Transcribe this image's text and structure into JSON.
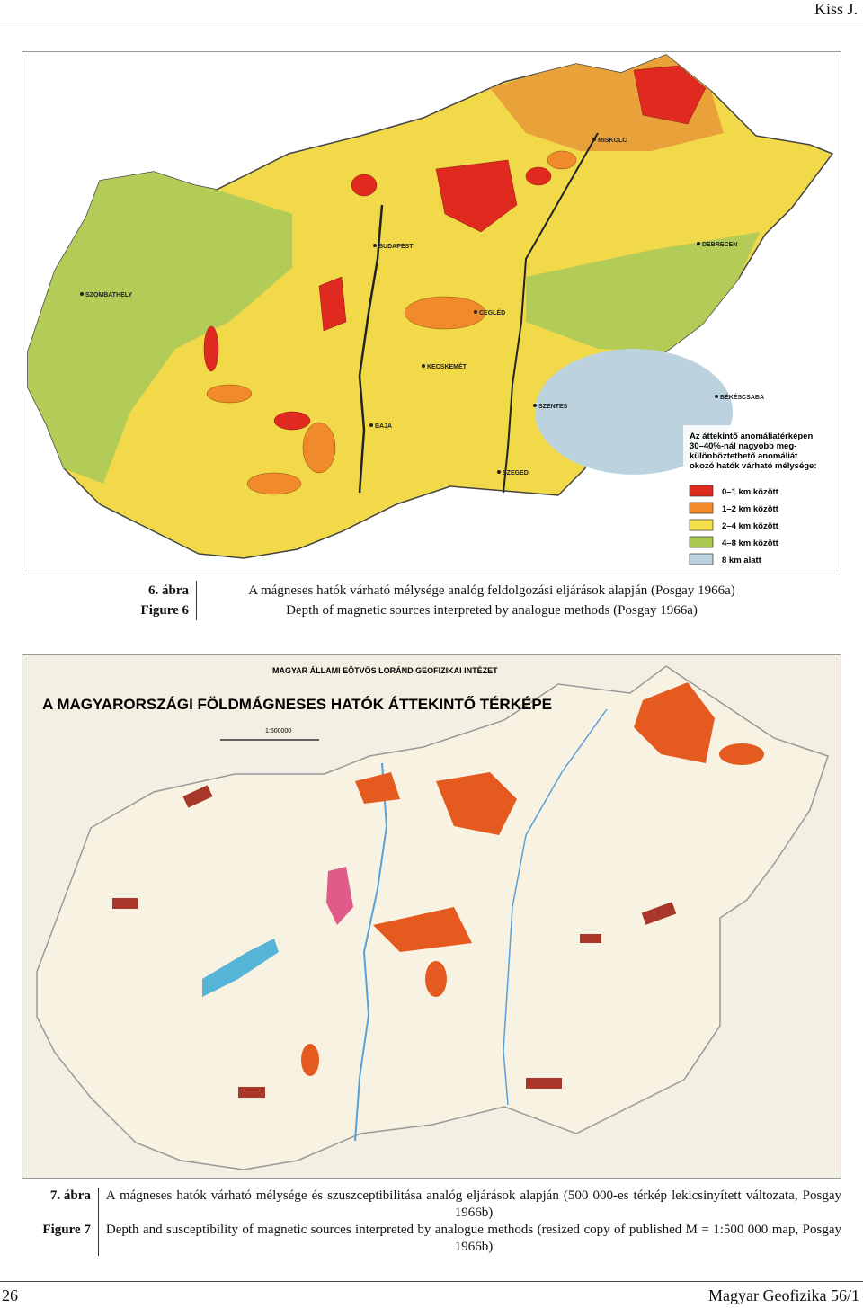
{
  "header": {
    "author": "Kiss J."
  },
  "figure6": {
    "place_labels": [
      "BUDAPEST",
      "DEBRECEN",
      "SZEGED",
      "CEGLÉD",
      "SZENTES",
      "MISKOLC",
      "KECSKEMÉT",
      "BÉKÉSCSABA",
      "SZOMBATHELY",
      "BAJA"
    ],
    "legend": {
      "title_lines": [
        "Az áttekintő anomáliatérképen",
        "30–40%-nál nagyobb meg-",
        "különböztethető anomáliát",
        "okozó hatók várható mélysége:"
      ],
      "items": [
        {
          "label": "0–1 km között",
          "color": "#e0291f"
        },
        {
          "label": "1–2 km között",
          "color": "#f08a2a"
        },
        {
          "label": "2–4 km között",
          "color": "#f5e04a"
        },
        {
          "label": "4–8 km között",
          "color": "#a9c94f"
        },
        {
          "label": "8 km alatt",
          "color": "#bcd3df"
        }
      ]
    },
    "caption": {
      "label_hu": "6. ábra",
      "label_en": "Figure 6",
      "text_hu": "A mágneses hatók várható mélysége analóg feldolgozási eljárások alapján (Posgay 1966a)",
      "text_en": "Depth of magnetic sources interpreted by analogue methods (Posgay 1966a)"
    }
  },
  "figure7": {
    "institute": "MAGYAR ÁLLAMI EÖTVÖS LORÁND GEOFIZIKAI INTÉZET",
    "map_title": "A MAGYARORSZÁGI FÖLDMÁGNESES HATÓK ÁTTEKINTŐ TÉRKÉPE",
    "scale": "1:500000",
    "caption": {
      "label_hu": "7. ábra",
      "label_en": "Figure 7",
      "text_hu": "A mágneses hatók várható mélysége és szuszceptibilitása analóg eljárások alapján (500 000-es térkép lekicsinyített változata, Posgay 1966b)",
      "text_en": "Depth and susceptibility of magnetic sources interpreted by analogue methods (resized copy of published M = 1:500 000 map, Posgay 1966b)"
    }
  },
  "footer": {
    "page": "26",
    "journal": "Magyar Geofizika 56/1"
  }
}
